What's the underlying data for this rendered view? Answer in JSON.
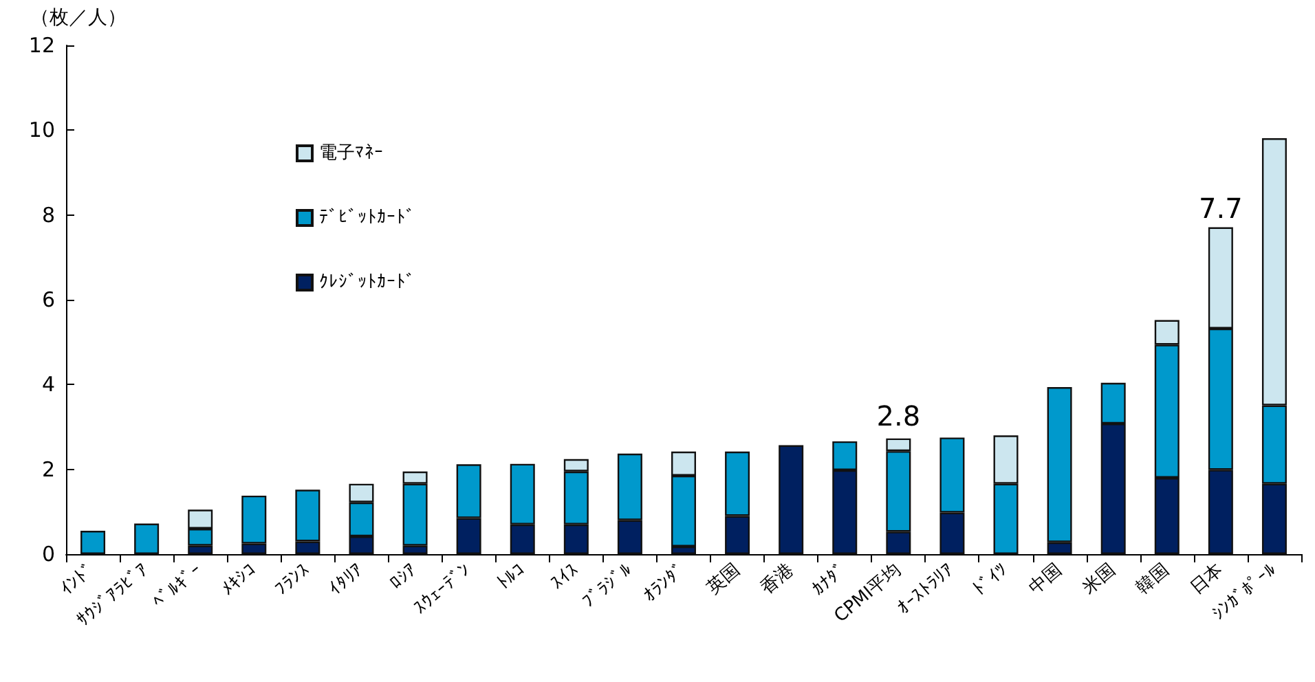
{
  "chart_data": {
    "type": "bar",
    "stacked": true,
    "ylabel": "（枚／人）",
    "categories": [
      "ｲﾝﾄﾞ",
      "ｻｳｼﾞｱﾗﾋﾞｱ",
      "ﾍﾞﾙｷﾞｰ",
      "ﾒｷｼｺ",
      "ﾌﾗﾝｽ",
      "ｲﾀﾘｱ",
      "ﾛｼｱ",
      "ｽｳｪｰﾃﾞﾝ",
      "ﾄﾙｺ",
      "ｽｲｽ",
      "ﾌﾞﾗｼﾞﾙ",
      "ｵﾗﾝﾀﾞ",
      "英国",
      "香港",
      "ｶﾅﾀﾞ",
      "CPMI平均",
      "ｵｰｽﾄﾗﾘｱ",
      "ﾄﾞｲﾂ",
      "中国",
      "米国",
      "韓国",
      "日本",
      "ｼﾝｶﾞﾎﾟｰﾙ"
    ],
    "series": [
      {
        "name": "ｸﾚｼﾞｯﾄｶｰﾄﾞ",
        "color": "#002060",
        "values": [
          0,
          0,
          0.2,
          0.25,
          0.3,
          0.42,
          0.2,
          0.85,
          0.7,
          0.7,
          0.8,
          0.18,
          0.9,
          2.57,
          1.98,
          0.53,
          0.98,
          0,
          0.28,
          3.08,
          1.8,
          1.99,
          1.66
        ]
      },
      {
        "name": "ﾃﾞﾋﾞｯﾄｶｰﾄﾞ",
        "color": "#0099cc",
        "values": [
          0.55,
          0.72,
          0.4,
          1.13,
          1.22,
          0.8,
          1.46,
          1.27,
          1.43,
          1.25,
          1.57,
          1.67,
          1.52,
          0,
          0.68,
          1.9,
          1.77,
          1.66,
          3.66,
          0.96,
          3.14,
          3.33,
          1.85
        ]
      },
      {
        "name": "電子ﾏﾈｰ",
        "color": "#cce6ef",
        "values": [
          0,
          0,
          0.45,
          0,
          0,
          0.44,
          0.29,
          0,
          0,
          0.29,
          0,
          0.57,
          0,
          0,
          0,
          0.3,
          0,
          1.14,
          0,
          0,
          0.58,
          2.39,
          6.3
        ]
      }
    ],
    "annotations": [
      {
        "text": "2.8",
        "x": "CPMI平均",
        "y": 2.8
      },
      {
        "text": "7.7",
        "x": "日本",
        "y": 7.7
      }
    ],
    "ylim": [
      0,
      12
    ],
    "yticks": [
      0,
      2,
      4,
      6,
      8,
      10,
      12
    ],
    "grid": false,
    "legend": "top left"
  }
}
